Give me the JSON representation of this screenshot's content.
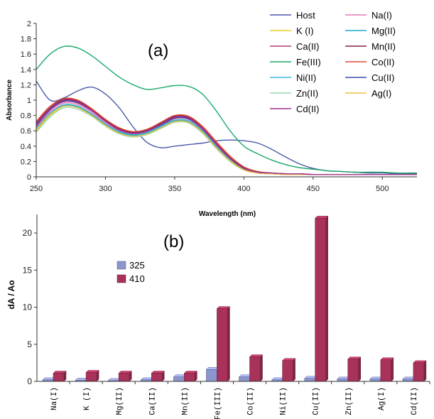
{
  "chart_data": [
    {
      "type": "line",
      "panel_label": "(a)",
      "xlabel": "Wavelength (nm)",
      "ylabel": "Absorbance",
      "xlim": [
        250,
        525
      ],
      "ylim": [
        0,
        2
      ],
      "xticks": [
        "250",
        "300",
        "350",
        "400",
        "450",
        "500"
      ],
      "yticks": [
        "0",
        "0.2",
        "0.4",
        "0.6",
        "0.8",
        "1",
        "1.2",
        "1.4",
        "1.6",
        "1.8",
        "2"
      ],
      "grid": false,
      "legend_position": "top-right",
      "x": [
        250,
        260,
        270,
        280,
        290,
        300,
        310,
        320,
        330,
        340,
        350,
        360,
        370,
        380,
        390,
        400,
        410,
        420,
        430,
        440,
        450,
        460,
        470,
        480,
        490,
        500,
        510,
        525
      ],
      "series": [
        {
          "name": "Host",
          "color": "#4a5aa8",
          "values": [
            1.25,
            1.0,
            1.03,
            1.12,
            1.17,
            1.08,
            0.9,
            0.65,
            0.45,
            0.38,
            0.4,
            0.42,
            0.44,
            0.47,
            0.48,
            0.47,
            0.44,
            0.36,
            0.26,
            0.17,
            0.11,
            0.08,
            0.07,
            0.06,
            0.05,
            0.05,
            0.04,
            0.04
          ]
        },
        {
          "name": "Na(I)",
          "color": "#e07ab8",
          "values": [
            0.65,
            0.85,
            0.96,
            0.94,
            0.84,
            0.7,
            0.6,
            0.55,
            0.58,
            0.66,
            0.74,
            0.73,
            0.6,
            0.4,
            0.22,
            0.1,
            0.05,
            0.04,
            0.04,
            0.03,
            0.03,
            0.03,
            0.03,
            0.03,
            0.03,
            0.03,
            0.03,
            0.03
          ]
        },
        {
          "name": "K (I)",
          "color": "#e8d020",
          "values": [
            0.6,
            0.8,
            0.92,
            0.9,
            0.8,
            0.67,
            0.57,
            0.53,
            0.56,
            0.64,
            0.72,
            0.71,
            0.58,
            0.38,
            0.2,
            0.09,
            0.05,
            0.04,
            0.03,
            0.03,
            0.03,
            0.03,
            0.03,
            0.03,
            0.03,
            0.03,
            0.03,
            0.03
          ]
        },
        {
          "name": "Mg(II)",
          "color": "#1fa8c8",
          "values": [
            0.62,
            0.82,
            0.93,
            0.91,
            0.81,
            0.68,
            0.58,
            0.54,
            0.57,
            0.65,
            0.73,
            0.72,
            0.59,
            0.39,
            0.21,
            0.09,
            0.05,
            0.04,
            0.03,
            0.03,
            0.03,
            0.03,
            0.03,
            0.03,
            0.03,
            0.03,
            0.03,
            0.03
          ]
        },
        {
          "name": "Ca(II)",
          "color": "#b03880",
          "values": [
            0.66,
            0.87,
            0.98,
            0.96,
            0.86,
            0.72,
            0.61,
            0.56,
            0.59,
            0.67,
            0.76,
            0.75,
            0.62,
            0.42,
            0.23,
            0.1,
            0.05,
            0.04,
            0.04,
            0.03,
            0.03,
            0.03,
            0.03,
            0.03,
            0.03,
            0.03,
            0.03,
            0.03
          ]
        },
        {
          "name": "Mn(II)",
          "color": "#8a2038",
          "values": [
            0.7,
            0.9,
            1.01,
            0.99,
            0.88,
            0.74,
            0.63,
            0.58,
            0.61,
            0.7,
            0.79,
            0.78,
            0.64,
            0.44,
            0.25,
            0.12,
            0.06,
            0.05,
            0.04,
            0.04,
            0.03,
            0.03,
            0.03,
            0.03,
            0.03,
            0.03,
            0.03,
            0.03
          ]
        },
        {
          "name": "Fe(III)",
          "color": "#1aaa6a",
          "values": [
            1.4,
            1.6,
            1.7,
            1.68,
            1.58,
            1.44,
            1.3,
            1.2,
            1.14,
            1.16,
            1.19,
            1.18,
            1.08,
            0.86,
            0.6,
            0.4,
            0.3,
            0.22,
            0.16,
            0.12,
            0.1,
            0.08,
            0.07,
            0.06,
            0.06,
            0.06,
            0.05,
            0.05
          ]
        },
        {
          "name": "Co(II)",
          "color": "#e04830",
          "values": [
            0.72,
            0.92,
            1.02,
            1.0,
            0.89,
            0.75,
            0.64,
            0.59,
            0.62,
            0.71,
            0.8,
            0.79,
            0.66,
            0.46,
            0.27,
            0.13,
            0.07,
            0.05,
            0.04,
            0.04,
            0.03,
            0.03,
            0.03,
            0.03,
            0.03,
            0.03,
            0.03,
            0.03
          ]
        },
        {
          "name": "Ni(II)",
          "color": "#3ab8d8",
          "values": [
            0.63,
            0.83,
            0.94,
            0.92,
            0.82,
            0.69,
            0.59,
            0.55,
            0.58,
            0.66,
            0.74,
            0.73,
            0.6,
            0.4,
            0.22,
            0.1,
            0.05,
            0.04,
            0.04,
            0.03,
            0.03,
            0.03,
            0.03,
            0.03,
            0.03,
            0.03,
            0.03,
            0.03
          ]
        },
        {
          "name": "Cu(II)",
          "color": "#3a4ab0",
          "values": [
            0.68,
            0.88,
            0.99,
            0.97,
            0.87,
            0.73,
            0.62,
            0.57,
            0.6,
            0.68,
            0.77,
            0.76,
            0.63,
            0.43,
            0.24,
            0.11,
            0.06,
            0.05,
            0.04,
            0.04,
            0.03,
            0.03,
            0.03,
            0.03,
            0.03,
            0.03,
            0.03,
            0.03
          ]
        },
        {
          "name": "Zn(II)",
          "color": "#9ad8b0",
          "values": [
            0.58,
            0.78,
            0.9,
            0.88,
            0.79,
            0.66,
            0.56,
            0.52,
            0.55,
            0.63,
            0.71,
            0.7,
            0.57,
            0.37,
            0.2,
            0.09,
            0.05,
            0.04,
            0.03,
            0.03,
            0.03,
            0.03,
            0.03,
            0.03,
            0.03,
            0.03,
            0.03,
            0.03
          ]
        },
        {
          "name": "Ag(I)",
          "color": "#f0c040",
          "values": [
            0.61,
            0.81,
            0.92,
            0.9,
            0.8,
            0.67,
            0.57,
            0.53,
            0.56,
            0.64,
            0.72,
            0.71,
            0.58,
            0.38,
            0.21,
            0.09,
            0.05,
            0.04,
            0.03,
            0.03,
            0.03,
            0.03,
            0.03,
            0.03,
            0.03,
            0.03,
            0.03,
            0.03
          ]
        },
        {
          "name": "Cd(II)",
          "color": "#a03090",
          "values": [
            0.69,
            0.89,
            1.0,
            0.98,
            0.87,
            0.73,
            0.62,
            0.57,
            0.6,
            0.69,
            0.78,
            0.77,
            0.63,
            0.43,
            0.24,
            0.11,
            0.06,
            0.05,
            0.04,
            0.04,
            0.03,
            0.03,
            0.03,
            0.03,
            0.03,
            0.03,
            0.03,
            0.03
          ]
        }
      ]
    },
    {
      "type": "bar",
      "panel_label": "(b)",
      "ylabel": "dA / Ao",
      "ylim": [
        0,
        22.5
      ],
      "yticks": [
        "0",
        "5",
        "10",
        "15",
        "20"
      ],
      "grid": false,
      "legend_position": "top-left",
      "categories": [
        "Na(I)",
        "K (I)",
        "Mg(II)",
        "Ca(II)",
        "Mn(II)",
        "Fe(III)",
        "Co(II)",
        "Ni(II)",
        "Cu(II)",
        "Zn(II)",
        "Ag(I)",
        "Cd(II)"
      ],
      "series": [
        {
          "name": "325",
          "color": "#8c96cc",
          "values": [
            0.2,
            0.15,
            0.1,
            0.2,
            0.6,
            1.6,
            0.6,
            0.2,
            0.4,
            0.3,
            0.3,
            0.3
          ]
        },
        {
          "name": "410",
          "color": "#a8325a",
          "values": [
            1.1,
            1.2,
            1.1,
            1.1,
            1.1,
            9.8,
            3.3,
            2.8,
            22.0,
            3.0,
            2.9,
            2.5
          ]
        }
      ]
    }
  ]
}
